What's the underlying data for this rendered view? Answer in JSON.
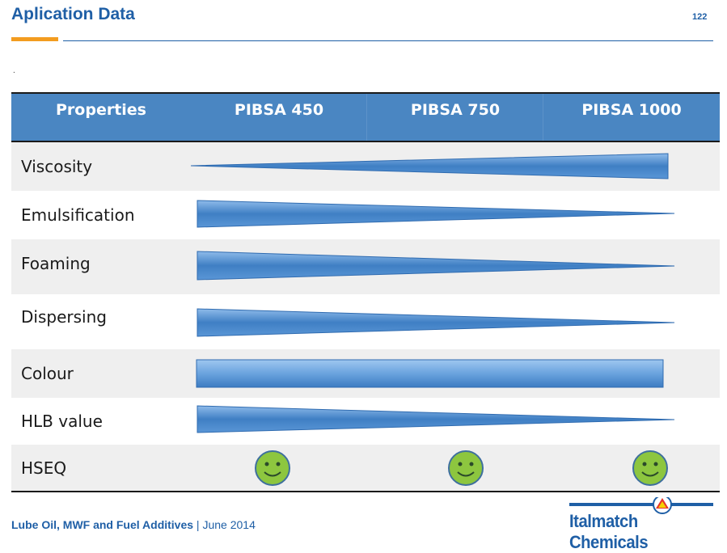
{
  "header": {
    "title": "Aplication Data",
    "page_number": "122",
    "dot": "."
  },
  "table": {
    "columns": [
      "Properties",
      "PIBSA 450",
      "PIBSA 750",
      "PIBSA 1000"
    ],
    "rows": [
      {
        "label": "Viscosity",
        "trend": "increasing"
      },
      {
        "label": "Emulsification",
        "trend": "decreasing"
      },
      {
        "label": "Foaming",
        "trend": "decreasing"
      },
      {
        "label": "Dispersing",
        "trend": "decreasing"
      },
      {
        "label": "Colour",
        "trend": "constant"
      },
      {
        "label": "HLB value",
        "trend": "decreasing"
      },
      {
        "label": "HSEQ",
        "trend": "smiley-all"
      }
    ]
  },
  "footer": {
    "product_line": "Lube Oil, MWF and Fuel Additives",
    "separator": " | ",
    "date": "June 2014"
  },
  "logo": {
    "text": "Italmatch Chemicals"
  },
  "colors": {
    "brand_blue": "#1f5fa6",
    "accent_orange": "#f39c1f",
    "header_blue": "#4a86c2",
    "smiley_green": "#8dc63f"
  }
}
